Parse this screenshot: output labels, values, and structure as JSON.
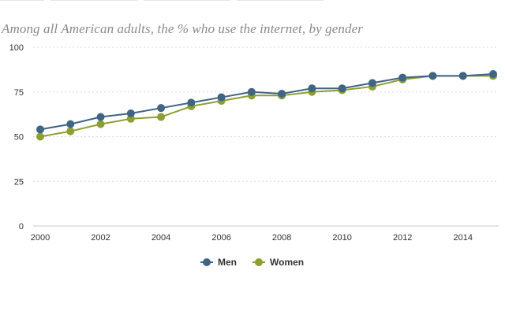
{
  "subtitle": "Among all American adults, the % who use the internet, by gender",
  "colors": {
    "men": "#3f6484",
    "women": "#8d9f33",
    "grid": "#dcdcdc",
    "baseline": "#c9c3e0"
  },
  "legend": {
    "men_label": "Men",
    "women_label": "Women"
  },
  "chart_data": {
    "type": "line",
    "title": "",
    "xlabel": "",
    "ylabel": "",
    "x": [
      2000,
      2001,
      2002,
      2003,
      2004,
      2005,
      2006,
      2007,
      2008,
      2009,
      2010,
      2011,
      2012,
      2013,
      2014,
      2015
    ],
    "xticks": [
      "2000",
      "2002",
      "2004",
      "2006",
      "2008",
      "2010",
      "2012",
      "2014"
    ],
    "yticks": [
      "0",
      "25",
      "50",
      "75",
      "100"
    ],
    "ylim": [
      0,
      100
    ],
    "grid": true,
    "legend_position": "bottom",
    "series": [
      {
        "name": "Men",
        "color": "#3f6484",
        "values": [
          54,
          57,
          61,
          63,
          66,
          69,
          72,
          75,
          74,
          77,
          77,
          80,
          83,
          84,
          84,
          85
        ]
      },
      {
        "name": "Women",
        "color": "#8d9f33",
        "values": [
          50,
          53,
          57,
          60,
          61,
          67,
          70,
          73,
          73,
          75,
          76,
          78,
          82,
          84,
          84,
          84
        ]
      }
    ]
  }
}
